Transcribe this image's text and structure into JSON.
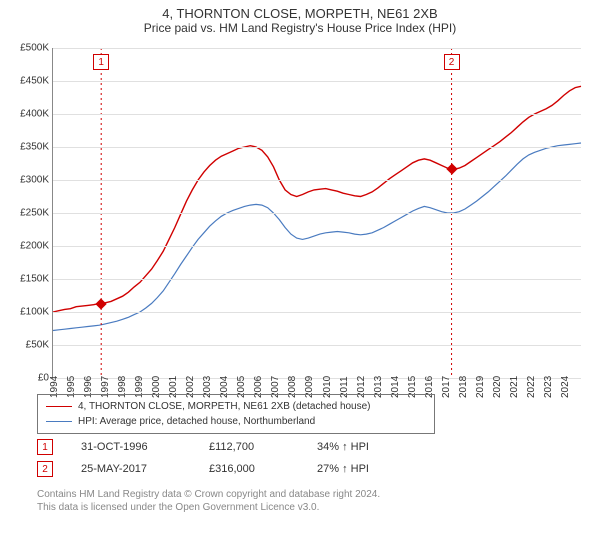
{
  "title": "4, THORNTON CLOSE, MORPETH, NE61 2XB",
  "subtitle": "Price paid vs. HM Land Registry's House Price Index (HPI)",
  "chart": {
    "type": "line",
    "x_years": [
      1994,
      1995,
      1996,
      1997,
      1998,
      1999,
      2000,
      2001,
      2002,
      2003,
      2004,
      2005,
      2006,
      2007,
      2008,
      2009,
      2010,
      2011,
      2012,
      2013,
      2014,
      2015,
      2016,
      2017,
      2018,
      2019,
      2020,
      2021,
      2022,
      2023,
      2024
    ],
    "x_range": [
      1994,
      2025
    ],
    "ylim": [
      0,
      500000
    ],
    "ytick_step": 50000,
    "ytick_labels": [
      "£0",
      "£50K",
      "£100K",
      "£150K",
      "£200K",
      "£250K",
      "£300K",
      "£350K",
      "£400K",
      "£450K",
      "£500K"
    ],
    "grid_color": "#e0e0e0",
    "background_color": "#ffffff",
    "series": {
      "property": {
        "color": "#d00000",
        "width": 1.4,
        "y": [
          100,
          102,
          104,
          105,
          108,
          109,
          110,
          111,
          113,
          114,
          116,
          120,
          124,
          130,
          138,
          145,
          155,
          165,
          178,
          192,
          210,
          228,
          248,
          268,
          285,
          300,
          312,
          322,
          330,
          336,
          340,
          344,
          348,
          350,
          352,
          350,
          345,
          335,
          320,
          300,
          285,
          278,
          275,
          278,
          282,
          285,
          286,
          287,
          285,
          283,
          280,
          278,
          276,
          275,
          278,
          282,
          288,
          295,
          302,
          308,
          314,
          320,
          326,
          330,
          332,
          330,
          326,
          322,
          318,
          316,
          318,
          322,
          328,
          334,
          340,
          346,
          352,
          358,
          365,
          372,
          380,
          388,
          395,
          400,
          404,
          408,
          413,
          420,
          428,
          435,
          440,
          442
        ]
      },
      "hpi": {
        "color": "#4a7bc0",
        "width": 1.2,
        "y": [
          72,
          73,
          74,
          75,
          76,
          77,
          78,
          79,
          80,
          82,
          84,
          86,
          89,
          92,
          96,
          100,
          106,
          113,
          122,
          132,
          145,
          158,
          172,
          185,
          198,
          210,
          220,
          230,
          238,
          245,
          250,
          254,
          257,
          260,
          262,
          263,
          262,
          258,
          250,
          240,
          228,
          218,
          212,
          210,
          212,
          215,
          218,
          220,
          221,
          222,
          221,
          220,
          218,
          217,
          218,
          220,
          224,
          228,
          233,
          238,
          243,
          248,
          253,
          257,
          260,
          258,
          255,
          252,
          250,
          250,
          252,
          256,
          262,
          268,
          275,
          282,
          290,
          298,
          306,
          315,
          324,
          332,
          338,
          342,
          345,
          348,
          350,
          352,
          353,
          354,
          355,
          356
        ]
      }
    },
    "sale_events": [
      {
        "idx": "1",
        "year": 1996.83,
        "price": 112700,
        "color": "#d00000"
      },
      {
        "idx": "2",
        "year": 2017.4,
        "price": 316000,
        "color": "#d00000"
      }
    ]
  },
  "legend": {
    "series1": {
      "label": "4, THORNTON CLOSE, MORPETH, NE61 2XB (detached house)",
      "color": "#d00000"
    },
    "series2": {
      "label": "HPI: Average price, detached house, Northumberland",
      "color": "#4a7bc0"
    }
  },
  "sales": [
    {
      "idx": "1",
      "date": "31-OCT-1996",
      "price": "£112,700",
      "pct": "34% ↑ HPI",
      "color": "#d00000"
    },
    {
      "idx": "2",
      "date": "25-MAY-2017",
      "price": "£316,000",
      "pct": "27% ↑ HPI",
      "color": "#d00000"
    }
  ],
  "footer": {
    "line1": "Contains HM Land Registry data © Crown copyright and database right 2024.",
    "line2": "This data is licensed under the Open Government Licence v3.0."
  }
}
